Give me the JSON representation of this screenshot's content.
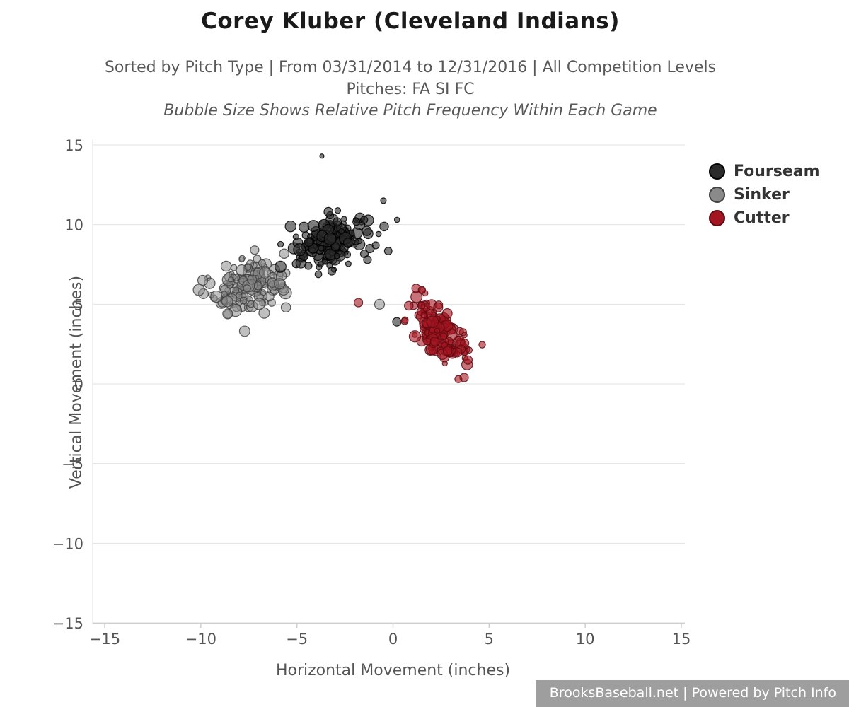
{
  "header": {
    "title": "Corey Kluber (Cleveland Indians)",
    "subtitle1": "Sorted by Pitch Type | From 03/31/2014 to 12/31/2016 | All Competition Levels",
    "subtitle2": "Pitches: FA SI FC",
    "subtitle3": "Bubble Size Shows Relative Pitch Frequency Within Each Game"
  },
  "footer": {
    "text": "BrooksBaseball.net | Powered by Pitch Info"
  },
  "chart_data": {
    "type": "scatter",
    "title": "Corey Kluber (Cleveland Indians)",
    "subtitle": "Sorted by Pitch Type | From 03/31/2014 to 12/31/2016 | All Competition Levels",
    "note": "Bubble Size Shows Relative Pitch Frequency Within Each Game",
    "xlabel": "Horizontal Movement (inches)",
    "ylabel": "Vertical Movement (inches)",
    "xlim": [
      -15,
      15
    ],
    "ylim": [
      -15,
      15
    ],
    "xticks": [
      -15,
      -10,
      -5,
      0,
      5,
      10,
      15
    ],
    "yticks": [
      -15,
      -10,
      -5,
      0,
      5,
      10,
      15
    ],
    "grid": "horizontal",
    "legend_position": "right",
    "seed": 20140331,
    "bubble_radius_range": [
      3.5,
      8.5
    ],
    "draw_order": [
      1,
      0,
      2
    ],
    "series": [
      {
        "name": "Fourseam",
        "fill": "#2b2b2b",
        "stroke": "#000000",
        "opacity": 0.6,
        "cluster": {
          "cx": -3.3,
          "cy": 8.9,
          "sx": 1.0,
          "sy": 0.75,
          "tilt": 0.25,
          "count": 175
        },
        "extra_points": [
          [
            -3.7,
            14.3,
            3
          ],
          [
            -0.5,
            11.5,
            4
          ],
          [
            -1.5,
            10.3,
            5
          ],
          [
            0.2,
            3.9,
            6
          ],
          [
            -1.2,
            8.5,
            6
          ],
          [
            -0.9,
            8.7,
            5
          ]
        ]
      },
      {
        "name": "Sinker",
        "fill": "#8a8a8a",
        "stroke": "#3f3f3f",
        "opacity": 0.55,
        "cluster": {
          "cx": -7.6,
          "cy": 6.1,
          "sx": 0.95,
          "sy": 0.75,
          "tilt": 0.1,
          "count": 150
        },
        "extra_points": [
          [
            -0.7,
            5.0,
            7
          ],
          [
            -10.1,
            5.9,
            8
          ],
          [
            -9.9,
            6.5,
            7
          ],
          [
            -8.6,
            4.4,
            7
          ],
          [
            -7.2,
            8.4,
            6
          ]
        ]
      },
      {
        "name": "Cutter",
        "fill": "#a31621",
        "stroke": "#5f0a10",
        "opacity": 0.6,
        "cluster": {
          "cx": 2.4,
          "cy": 3.2,
          "sx": 0.7,
          "sy": 0.8,
          "tilt": -0.9,
          "count": 150
        },
        "extra_points": [
          [
            -1.8,
            5.1,
            6
          ],
          [
            1.2,
            6.0,
            6
          ],
          [
            1.5,
            5.9,
            5
          ],
          [
            3.7,
            0.4,
            6
          ],
          [
            3.9,
            1.5,
            6
          ],
          [
            3.4,
            0.3,
            5
          ]
        ]
      }
    ]
  }
}
